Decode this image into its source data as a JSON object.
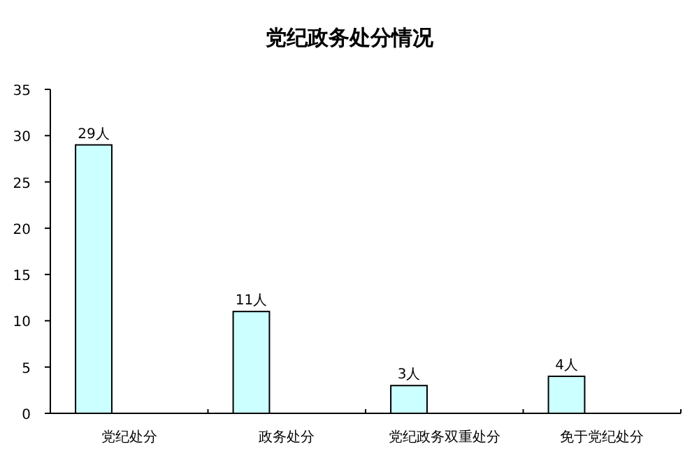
{
  "chart_data": {
    "type": "bar",
    "title": "党纪政务处分情况",
    "categories": [
      "党纪处分",
      "政务处分",
      "党纪政务双重处分",
      "免于党纪处分"
    ],
    "values": [
      29,
      11,
      3,
      4
    ],
    "value_labels": [
      "29人",
      "11人",
      "3人",
      "4人"
    ],
    "color": "#ccffff",
    "ylim": [
      0,
      35
    ],
    "yticks": [
      0,
      5,
      10,
      15,
      20,
      25,
      30,
      35
    ],
    "grid": false
  }
}
